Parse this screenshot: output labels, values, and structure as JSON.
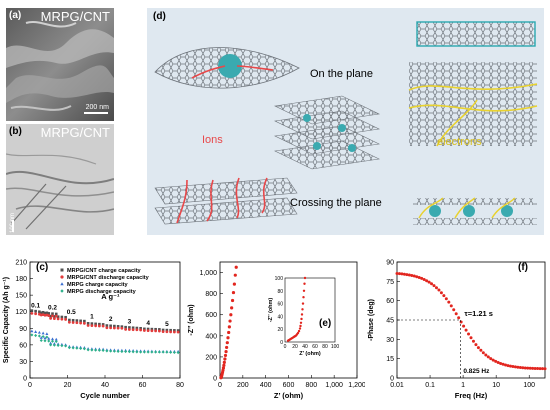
{
  "panel_a": {
    "tag": "(a)",
    "title": "MRPG/CNT",
    "scalebar": "200 nm"
  },
  "panel_b": {
    "tag": "(b)",
    "title": "MRPG/CNT",
    "scalebar": "100 nm"
  },
  "panel_d": {
    "tag": "(d)",
    "on_plane": "On the plane",
    "crossing": "Crossing the plane",
    "ions": "Ions",
    "electrons": "electrons",
    "colors": {
      "background": "#dfe8f0",
      "ions": "#e8484a",
      "electrons": "#e8d230",
      "sheet": "#7a7f86",
      "ion_ball": "#3aaab0"
    }
  },
  "chart_data": [
    {
      "id": "c",
      "type": "scatter",
      "tag": "(c)",
      "xlabel": "Cycle number",
      "ylabel": "Specific Capacity (Ah g⁻¹)",
      "xlim": [
        0,
        80
      ],
      "ylim": [
        0,
        210
      ],
      "xticks": [
        0,
        20,
        40,
        60,
        80
      ],
      "yticks": [
        0,
        30,
        60,
        90,
        120,
        150,
        180,
        210
      ],
      "rate_label": "A g⁻¹",
      "rate_annotations": [
        {
          "text": "0.1",
          "x": 3,
          "y": 122
        },
        {
          "text": "0.2",
          "x": 12,
          "y": 118
        },
        {
          "text": "0.5",
          "x": 22,
          "y": 110
        },
        {
          "text": "1",
          "x": 33,
          "y": 102
        },
        {
          "text": "2",
          "x": 43,
          "y": 97
        },
        {
          "text": "3",
          "x": 53,
          "y": 93
        },
        {
          "text": "4",
          "x": 63,
          "y": 90
        },
        {
          "text": "5",
          "x": 73,
          "y": 88
        }
      ],
      "legend_position": "top-right",
      "series": [
        {
          "name": "MRPG/CNT charge capacity",
          "color": "#505050",
          "marker": "square",
          "segments": [
            [
              1,
              122,
              118
            ],
            [
              6,
              118,
              116
            ],
            [
              11,
              112,
              110
            ],
            [
              21,
              105,
              103
            ],
            [
              31,
              99,
              97
            ],
            [
              41,
              95,
              93
            ],
            [
              51,
              92,
              90
            ],
            [
              61,
              89,
              88
            ],
            [
              71,
              87,
              86
            ]
          ]
        },
        {
          "name": "MRPG/CNT discharge capacity",
          "color": "#e23b3b",
          "marker": "circle",
          "segments": [
            [
              1,
              117,
              114
            ],
            [
              6,
              114,
              112
            ],
            [
              11,
              108,
              106
            ],
            [
              21,
              101,
              99
            ],
            [
              31,
              95,
              94
            ],
            [
              41,
              91,
              90
            ],
            [
              51,
              88,
              87
            ],
            [
              61,
              86,
              85
            ],
            [
              71,
              84,
              83
            ]
          ]
        },
        {
          "name": "MRPG charge capacity",
          "color": "#3b6fd1",
          "marker": "triangle",
          "segments": [
            [
              1,
              85,
              80
            ],
            [
              6,
              73,
              70
            ],
            [
              11,
              63,
              60
            ],
            [
              21,
              57,
              55
            ],
            [
              31,
              53,
              52
            ],
            [
              41,
              51,
              50
            ],
            [
              51,
              50,
              49
            ],
            [
              61,
              49,
              48
            ],
            [
              71,
              48,
              48
            ]
          ]
        },
        {
          "name": "MRPG discharge capacity",
          "color": "#2cb08a",
          "marker": "diamond",
          "segments": [
            [
              1,
              78,
              74
            ],
            [
              6,
              68,
              66
            ],
            [
              11,
              60,
              58
            ],
            [
              21,
              55,
              53
            ],
            [
              31,
              51,
              50
            ],
            [
              41,
              49,
              48
            ],
            [
              51,
              48,
              47
            ],
            [
              61,
              47,
              47
            ],
            [
              71,
              47,
              46
            ]
          ]
        }
      ]
    },
    {
      "id": "e",
      "type": "scatter",
      "tag": "(e)",
      "xlabel": "Z’ (ohm)",
      "ylabel": "-Z’’ (ohm)",
      "xlim": [
        0,
        1200
      ],
      "ylim": [
        0,
        1100
      ],
      "xticks": [
        0,
        200,
        400,
        600,
        800,
        1000,
        1200
      ],
      "ytick_labels": [
        "0",
        "200",
        "400",
        "600",
        "800",
        "1,000"
      ],
      "xtick_labels": [
        "0",
        "200",
        "400",
        "600",
        "800",
        "1,000",
        "1,200"
      ],
      "color": "#e2261f",
      "points": [
        [
          8,
          2
        ],
        [
          10,
          6
        ],
        [
          12,
          12
        ],
        [
          15,
          22
        ],
        [
          18,
          35
        ],
        [
          22,
          52
        ],
        [
          26,
          72
        ],
        [
          30,
          95
        ],
        [
          34,
          120
        ],
        [
          38,
          148
        ],
        [
          43,
          180
        ],
        [
          48,
          214
        ],
        [
          53,
          250
        ],
        [
          58,
          290
        ],
        [
          64,
          335
        ],
        [
          70,
          382
        ],
        [
          76,
          432
        ],
        [
          82,
          485
        ],
        [
          88,
          540
        ],
        [
          95,
          600
        ],
        [
          102,
          665
        ],
        [
          110,
          735
        ],
        [
          118,
          810
        ],
        [
          126,
          890
        ],
        [
          134,
          975
        ],
        [
          142,
          1050
        ]
      ],
      "inset": {
        "xlabel": "Z’ (ohm)",
        "ylabel": "-Z’’ (ohm)",
        "xlim": [
          0,
          100
        ],
        "ylim": [
          0,
          100
        ],
        "xticks": [
          0,
          20,
          40,
          60,
          80,
          100
        ],
        "yticks": [
          0,
          20,
          40,
          60,
          80,
          100
        ],
        "points": [
          [
            6,
            2
          ],
          [
            8,
            3
          ],
          [
            10,
            4
          ],
          [
            12,
            5
          ],
          [
            14,
            6
          ],
          [
            16,
            7
          ],
          [
            18,
            8
          ],
          [
            20,
            9
          ],
          [
            22,
            10
          ],
          [
            24,
            12
          ],
          [
            26,
            14
          ],
          [
            28,
            17
          ],
          [
            30,
            21
          ],
          [
            31,
            25
          ],
          [
            32,
            30
          ],
          [
            33,
            36
          ],
          [
            34,
            43
          ],
          [
            35,
            51
          ],
          [
            36,
            60
          ],
          [
            37,
            70
          ],
          [
            38,
            80
          ],
          [
            39,
            91
          ],
          [
            40,
            100
          ]
        ]
      }
    },
    {
      "id": "f",
      "type": "line",
      "tag": "(f)",
      "xlabel": "Freq (Hz)",
      "ylabel": "-Phase (deg)",
      "xscale": "log",
      "xlim": [
        0.01,
        300
      ],
      "ylim": [
        0,
        90
      ],
      "xtick_labels": [
        "0.01",
        "0.1",
        "1",
        "10",
        "100"
      ],
      "yticks": [
        0,
        15,
        30,
        45,
        60,
        75,
        90
      ],
      "annotation_tau": "τ=1.21 s",
      "annotation_freq": "0.825 Hz",
      "marker_freq": 0.825,
      "marker_phase": 45,
      "color": "#e2261f"
    }
  ]
}
